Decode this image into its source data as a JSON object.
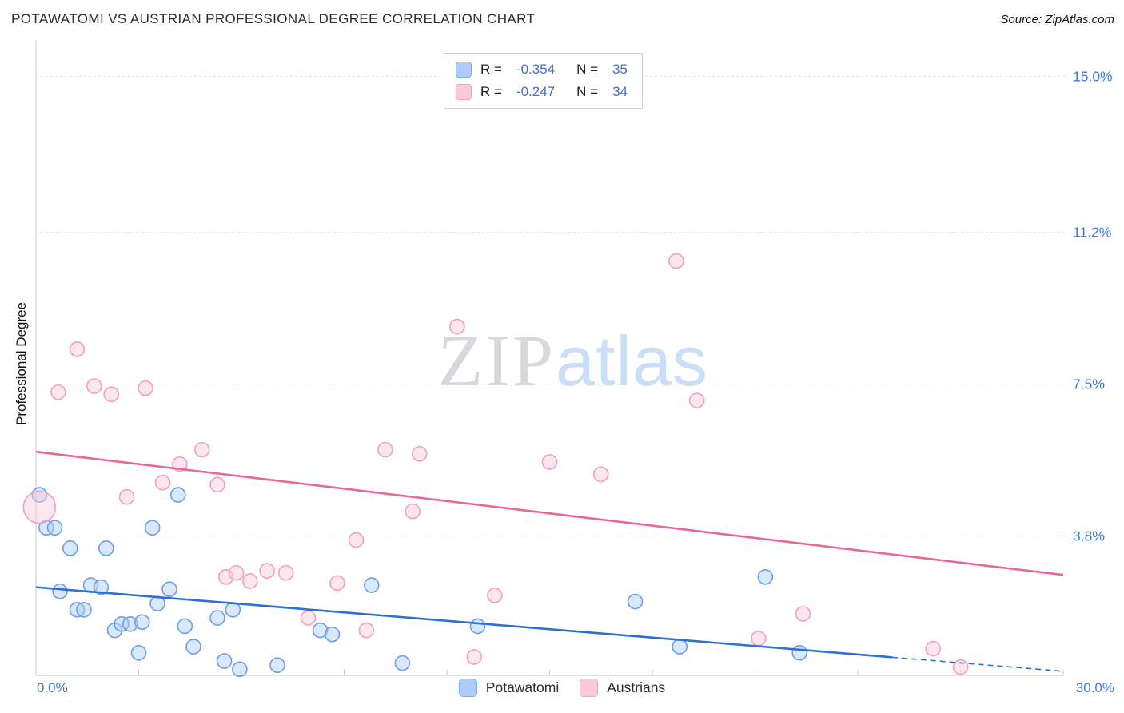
{
  "header": {
    "title": "POTAWATOMI VS AUSTRIAN PROFESSIONAL DEGREE CORRELATION CHART",
    "source": "Source: ZipAtlas.com"
  },
  "watermark": {
    "part1": "ZIP",
    "part2": "atlas"
  },
  "legend_box": {
    "rows": [
      {
        "series": "Potawatomi",
        "r_label": "R =",
        "r_value": "-0.354",
        "n_label": "N =",
        "n_value": "35"
      },
      {
        "series": "Austrians",
        "r_label": "R =",
        "r_value": "-0.247",
        "n_label": "N =",
        "n_value": "34"
      }
    ]
  },
  "chart_data": {
    "type": "scatter",
    "title": "Potawatomi vs Austrian Professional Degree Correlation Chart",
    "xlabel": "",
    "ylabel": "Professional Degree",
    "xlim": [
      0,
      30
    ],
    "ylim": [
      0.4,
      15.69
    ],
    "grid": true,
    "legend_position": "bottom-center",
    "x_ticks": [
      {
        "value": 0,
        "label": "0.0%"
      },
      {
        "value": 30,
        "label": "30.0%"
      }
    ],
    "x_minor_tick_step": 3,
    "y_ticks": [
      {
        "value": 3.8,
        "label": "3.8%"
      },
      {
        "value": 7.5,
        "label": "7.5%"
      },
      {
        "value": 11.2,
        "label": "11.2%"
      },
      {
        "value": 15.0,
        "label": "15.0%"
      }
    ],
    "style": {
      "grid_color": "#e3e3e3",
      "axis_color": "#c9c9c9",
      "tick_label_color": "#3d7bdb",
      "point_radius": 9
    },
    "series": [
      {
        "name": "Potawatomi",
        "r": -0.354,
        "n": 35,
        "fill": "#aecbfa",
        "fill_opacity": 0.45,
        "stroke": "#6d9eeb",
        "line_color": "#2a6fdb",
        "point_name": "potawatomi-point",
        "trend_name": "potawatomi-trend-line",
        "points": [
          [
            0.1,
            4.8
          ],
          [
            0.3,
            4.0
          ],
          [
            0.55,
            4.0
          ],
          [
            0.7,
            2.45
          ],
          [
            1.0,
            3.5
          ],
          [
            1.2,
            2.0
          ],
          [
            1.4,
            2.0
          ],
          [
            1.6,
            2.6
          ],
          [
            1.9,
            2.55
          ],
          [
            2.05,
            3.5
          ],
          [
            2.3,
            1.5
          ],
          [
            2.5,
            1.65
          ],
          [
            2.75,
            1.65
          ],
          [
            3.0,
            0.95
          ],
          [
            3.1,
            1.7
          ],
          [
            3.4,
            4.0
          ],
          [
            3.55,
            2.15
          ],
          [
            3.9,
            2.5
          ],
          [
            4.15,
            4.8
          ],
          [
            4.35,
            1.6
          ],
          [
            4.6,
            1.1
          ],
          [
            5.3,
            1.8
          ],
          [
            5.5,
            0.75
          ],
          [
            5.75,
            2.0
          ],
          [
            5.95,
            0.55
          ],
          [
            7.05,
            0.65
          ],
          [
            8.3,
            1.5
          ],
          [
            8.65,
            1.4
          ],
          [
            9.8,
            2.6
          ],
          [
            10.7,
            0.7
          ],
          [
            12.9,
            1.6
          ],
          [
            17.5,
            2.2
          ],
          [
            18.8,
            1.1
          ],
          [
            21.3,
            2.8
          ],
          [
            22.3,
            0.95
          ]
        ],
        "trend": {
          "x1": 0,
          "y1": 2.55,
          "x2": 30,
          "y2": 0.5,
          "solid_until": 25
        }
      },
      {
        "name": "Austrians",
        "r": -0.247,
        "n": 34,
        "fill": "#fbc9dc",
        "fill_opacity": 0.45,
        "stroke": "#f49ec0",
        "line_color": "#e8679a",
        "point_name": "austrians-point",
        "trend_name": "austrians-trend-line",
        "points": [
          [
            0.1,
            4.5,
            20
          ],
          [
            0.65,
            7.3
          ],
          [
            1.2,
            8.35
          ],
          [
            1.7,
            7.45
          ],
          [
            2.2,
            7.25
          ],
          [
            2.65,
            4.75
          ],
          [
            3.2,
            7.4
          ],
          [
            3.7,
            5.1
          ],
          [
            4.2,
            5.55
          ],
          [
            4.85,
            5.9
          ],
          [
            5.3,
            5.05
          ],
          [
            5.55,
            2.8
          ],
          [
            5.85,
            2.9
          ],
          [
            6.25,
            2.7
          ],
          [
            6.75,
            2.95
          ],
          [
            7.3,
            2.9
          ],
          [
            7.95,
            1.8
          ],
          [
            8.8,
            2.65
          ],
          [
            9.35,
            3.7
          ],
          [
            9.65,
            1.5
          ],
          [
            10.2,
            5.9
          ],
          [
            11.0,
            4.4
          ],
          [
            11.2,
            5.8
          ],
          [
            12.3,
            8.9
          ],
          [
            12.8,
            0.85
          ],
          [
            13.4,
            2.35
          ],
          [
            15.0,
            5.6
          ],
          [
            16.5,
            5.3
          ],
          [
            18.7,
            10.5
          ],
          [
            19.3,
            7.1
          ],
          [
            21.1,
            1.3
          ],
          [
            22.4,
            1.9
          ],
          [
            26.2,
            1.05
          ],
          [
            27.0,
            0.6
          ]
        ],
        "trend": {
          "x1": 0,
          "y1": 5.85,
          "x2": 30,
          "y2": 2.85
        }
      }
    ]
  }
}
